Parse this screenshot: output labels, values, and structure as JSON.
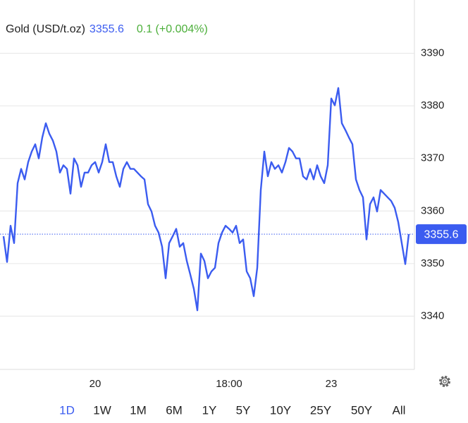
{
  "header": {
    "name": "Gold (USD/t.oz)",
    "price": 3355.6,
    "change": "0.1 (+0.004%)"
  },
  "chart_data": {
    "type": "line",
    "categories": [
      null,
      null,
      null,
      null,
      null,
      null,
      null,
      null,
      null,
      null,
      null,
      null,
      null,
      null,
      null,
      null,
      null,
      null,
      null,
      null,
      null,
      null,
      null,
      null,
      null,
      null,
      "20",
      null,
      null,
      null,
      null,
      null,
      null,
      null,
      null,
      null,
      null,
      null,
      null,
      null,
      null,
      null,
      null,
      null,
      null,
      null,
      null,
      null,
      null,
      null,
      null,
      null,
      null,
      null,
      null,
      null,
      null,
      null,
      null,
      null,
      null,
      null,
      null,
      null,
      "18:00",
      null,
      null,
      null,
      null,
      null,
      null,
      null,
      null,
      null,
      null,
      null,
      null,
      null,
      null,
      null,
      null,
      null,
      null,
      null,
      null,
      null,
      null,
      null,
      null,
      null,
      null,
      null,
      null,
      "23",
      null,
      null,
      null,
      null,
      null,
      null,
      null,
      null,
      null,
      null,
      null,
      null,
      null,
      null,
      null,
      null,
      null,
      null,
      null,
      null,
      null,
      null
    ],
    "series": [
      {
        "color": "#3b5cf0",
        "values": [
          3355.2,
          3350.3,
          3357.2,
          3353.9,
          3365.3,
          3368.0,
          3366.0,
          3369.3,
          3371.3,
          3372.7,
          3370.0,
          3374.0,
          3376.7,
          3374.7,
          3373.4,
          3371.3,
          3367.3,
          3368.7,
          3368.0,
          3363.3,
          3370.0,
          3368.7,
          3364.6,
          3367.3,
          3367.3,
          3368.7,
          3369.3,
          3367.3,
          3369.3,
          3372.7,
          3369.3,
          3369.3,
          3366.6,
          3364.6,
          3368.0,
          3369.3,
          3368.0,
          3368.0,
          3367.3,
          3366.6,
          3366.0,
          3361.3,
          3359.9,
          3357.2,
          3355.9,
          3353.2,
          3347.2,
          3353.9,
          3355.2,
          3356.6,
          3353.2,
          3353.9,
          3350.5,
          3347.9,
          3345.2,
          3341.1,
          3351.9,
          3350.5,
          3347.2,
          3348.5,
          3349.2,
          3353.9,
          3355.9,
          3357.2,
          3356.6,
          3355.9,
          3357.2,
          3353.9,
          3354.6,
          3348.5,
          3347.2,
          3343.8,
          3349.2,
          3364.0,
          3371.3,
          3366.6,
          3369.3,
          3368.0,
          3368.7,
          3367.3,
          3369.3,
          3372.0,
          3371.3,
          3370.0,
          3370.0,
          3366.6,
          3366.0,
          3368.0,
          3366.0,
          3368.7,
          3366.6,
          3365.3,
          3368.7,
          3381.4,
          3380.1,
          3383.4,
          3376.7,
          3375.4,
          3374.0,
          3372.7,
          3366.0,
          3364.0,
          3362.6,
          3354.6,
          3361.3,
          3362.6,
          3359.9,
          3364.0,
          3363.3,
          3362.6,
          3361.9,
          3360.6,
          3357.9,
          3353.9,
          3349.9,
          3355.6
        ]
      }
    ],
    "ylim": [
      3330,
      3400
    ],
    "yticks": [
      3340,
      3350,
      3360,
      3370,
      3380,
      3390
    ],
    "grid": true
  },
  "ranges": [
    "1D",
    "1W",
    "1M",
    "6M",
    "1Y",
    "5Y",
    "10Y",
    "25Y",
    "50Y",
    "All"
  ],
  "selected_range": "1D"
}
